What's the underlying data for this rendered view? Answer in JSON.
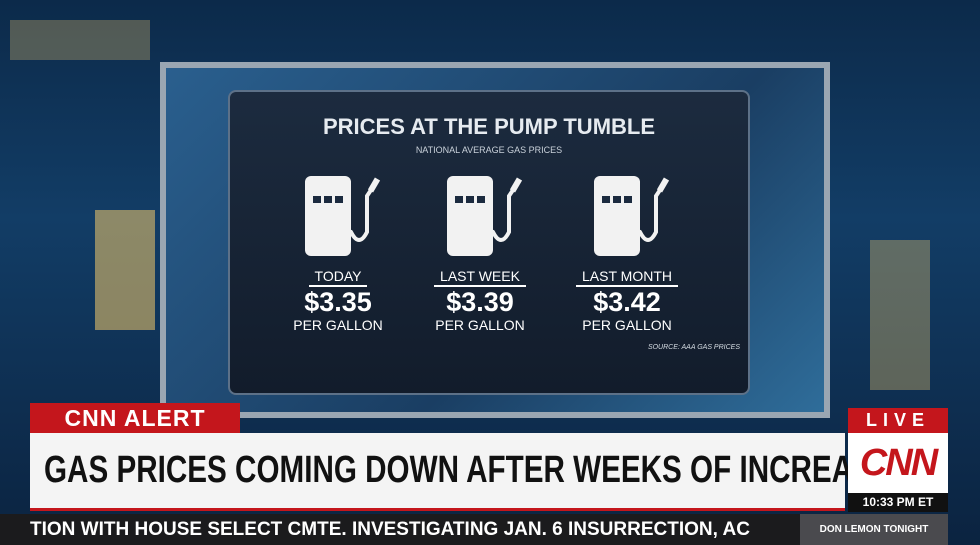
{
  "graphic": {
    "title": "PRICES AT THE PUMP TUMBLE",
    "subtitle": "NATIONAL AVERAGE GAS PRICES",
    "items": [
      {
        "label": "TODAY",
        "price": "$3.35",
        "unit": "PER GALLON"
      },
      {
        "label": "LAST WEEK",
        "price": "$3.39",
        "unit": "PER GALLON"
      },
      {
        "label": "LAST MONTH",
        "price": "$3.42",
        "unit": "PER GALLON"
      }
    ],
    "source": "SOURCE: AAA GAS PRICES"
  },
  "banner": {
    "alert": "CNN ALERT",
    "headline": "GAS PRICES COMING DOWN AFTER WEEKS OF INCREASES",
    "ticker": "TION WITH HOUSE SELECT CMTE. INVESTIGATING JAN. 6 INSURRECTION, AC"
  },
  "bug": {
    "live": "LIVE",
    "logo": "CNN",
    "time": "10:33 PM ET",
    "show": "DON LEMON TONIGHT"
  }
}
